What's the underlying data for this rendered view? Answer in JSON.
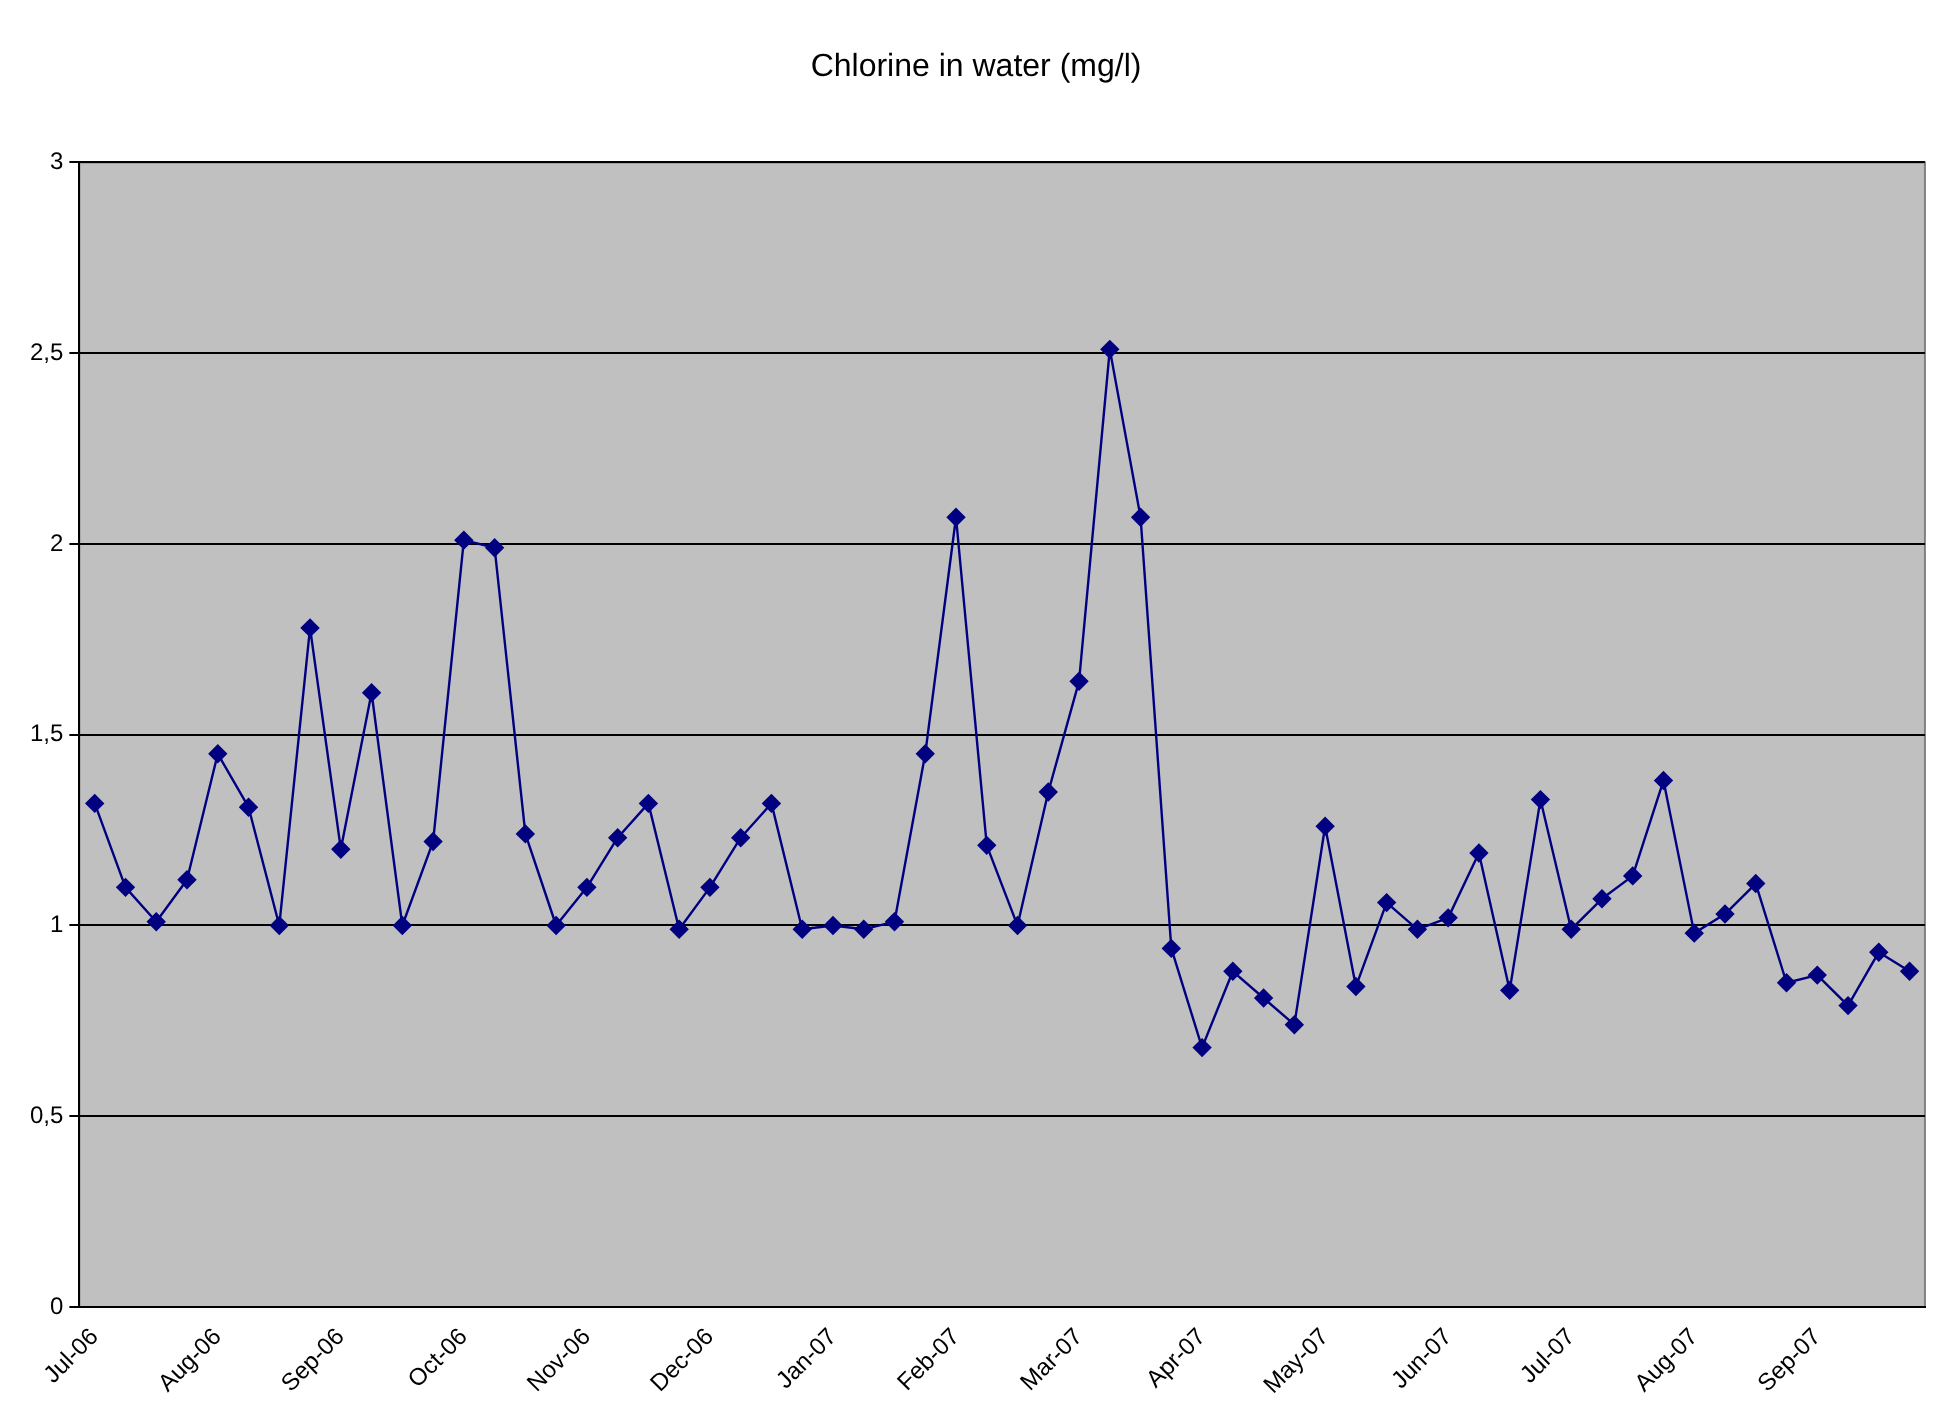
{
  "chart_data": {
    "type": "line",
    "title": "Chlorine in water (mg/l)",
    "categories": [
      "Jul-06",
      null,
      null,
      null,
      "Aug-06",
      null,
      null,
      null,
      "Sep-06",
      null,
      null,
      null,
      "Oct-06",
      null,
      null,
      null,
      "Nov-06",
      null,
      null,
      null,
      "Dec-06",
      null,
      null,
      null,
      "Jan-07",
      null,
      null,
      null,
      "Feb-07",
      null,
      null,
      null,
      "Mar-07",
      null,
      null,
      null,
      "Apr-07",
      null,
      null,
      null,
      "May-07",
      null,
      null,
      null,
      "Jun-07",
      null,
      null,
      null,
      "Jul-07",
      null,
      null,
      null,
      "Aug-07",
      null,
      null,
      null,
      "Sep-07",
      null,
      null,
      null
    ],
    "series": [
      {
        "color": "#000080",
        "values": [
          1.32,
          1.1,
          1.01,
          1.12,
          1.45,
          1.31,
          1.0,
          1.78,
          1.2,
          1.61,
          1.0,
          1.22,
          2.01,
          1.99,
          1.24,
          1.0,
          1.1,
          1.23,
          1.32,
          0.99,
          1.1,
          1.23,
          1.32,
          0.99,
          1.0,
          0.99,
          1.01,
          1.45,
          2.07,
          1.21,
          1.0,
          1.35,
          1.64,
          2.51,
          2.07,
          0.94,
          0.68,
          0.88,
          0.81,
          0.74,
          1.26,
          0.84,
          1.06,
          0.99,
          1.02,
          1.19,
          0.83,
          1.33,
          0.99,
          1.07,
          1.13,
          1.38,
          0.98,
          1.03,
          1.11,
          0.85,
          0.87,
          0.79,
          0.93,
          0.88
        ]
      }
    ],
    "ylim": [
      0,
      3
    ],
    "yticks": [
      0,
      {
        "value": 0.5,
        "label": "0,5"
      },
      1,
      {
        "value": 1.5,
        "label": "1,5"
      },
      2,
      {
        "value": 2.5,
        "label": "2,5"
      },
      3
    ],
    "grid": "y",
    "legend": false,
    "marker": "diamond",
    "line_style": "solid"
  }
}
